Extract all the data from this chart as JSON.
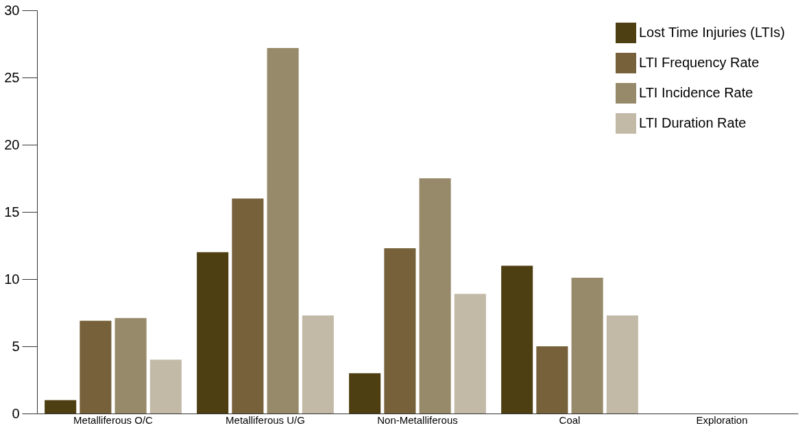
{
  "chart_data": {
    "type": "bar",
    "categories": [
      "Metalliferous O/C",
      "Metalliferous U/G",
      "Non-Metalliferous",
      "Coal",
      "Exploration"
    ],
    "series": [
      {
        "name": "Lost Time Injuries (LTIs)",
        "color": "#4e3f13",
        "values": [
          1,
          12,
          3,
          11,
          0
        ]
      },
      {
        "name": "LTI Frequency Rate",
        "color": "#76613a",
        "values": [
          6.9,
          16,
          12.3,
          5,
          0
        ]
      },
      {
        "name": "LTI Incidence Rate",
        "color": "#978a6a",
        "values": [
          7.1,
          27.2,
          17.5,
          10.1,
          0
        ]
      },
      {
        "name": "LTI Duration Rate",
        "color": "#c2b9a7",
        "values": [
          4,
          7.3,
          8.9,
          7.3,
          0
        ]
      }
    ],
    "ylim": [
      0,
      30
    ],
    "yticks": [
      0,
      5,
      10,
      15,
      20,
      25,
      30
    ],
    "grid": false,
    "legend": "top right"
  }
}
